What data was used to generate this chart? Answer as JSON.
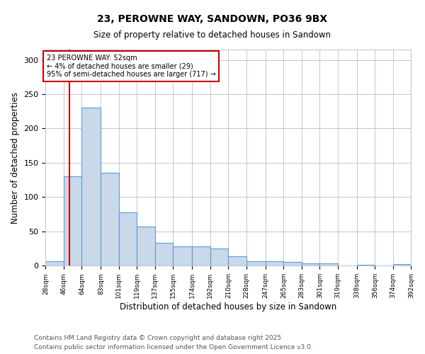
{
  "title_line1": "23, PEROWNE WAY, SANDOWN, PO36 9BX",
  "title_line2": "Size of property relative to detached houses in Sandown",
  "xlabel": "Distribution of detached houses by size in Sandown",
  "ylabel": "Number of detached properties",
  "bin_edges": [
    28,
    46,
    64,
    83,
    101,
    119,
    137,
    155,
    174,
    192,
    210,
    228,
    247,
    265,
    283,
    301,
    319,
    338,
    356,
    374,
    392
  ],
  "bar_heights": [
    7,
    130,
    230,
    135,
    78,
    57,
    33,
    28,
    28,
    25,
    14,
    7,
    7,
    6,
    3,
    3,
    0,
    1,
    0,
    2
  ],
  "bar_color": "#c9d9ea",
  "bar_edge_color": "#5b9bd5",
  "property_line_x": 52,
  "property_line_color": "#cc0000",
  "ylim": [
    0,
    315
  ],
  "annotation_text": "23 PEROWNE WAY: 52sqm\n← 4% of detached houses are smaller (29)\n95% of semi-detached houses are larger (717) →",
  "annotation_box_color": "#cc0000",
  "annotation_text_color": "#000000",
  "footnote_line1": "Contains HM Land Registry data © Crown copyright and database right 2025.",
  "footnote_line2": "Contains public sector information licensed under the Open Government Licence v3.0.",
  "background_color": "#ffffff",
  "grid_color": "#c0c8d8",
  "tick_labels": [
    "28sqm",
    "46sqm",
    "64sqm",
    "83sqm",
    "101sqm",
    "119sqm",
    "137sqm",
    "155sqm",
    "174sqm",
    "192sqm",
    "210sqm",
    "228sqm",
    "247sqm",
    "265sqm",
    "283sqm",
    "301sqm",
    "319sqm",
    "338sqm",
    "356sqm",
    "374sqm",
    "392sqm"
  ],
  "yticks": [
    0,
    50,
    100,
    150,
    200,
    250,
    300
  ]
}
